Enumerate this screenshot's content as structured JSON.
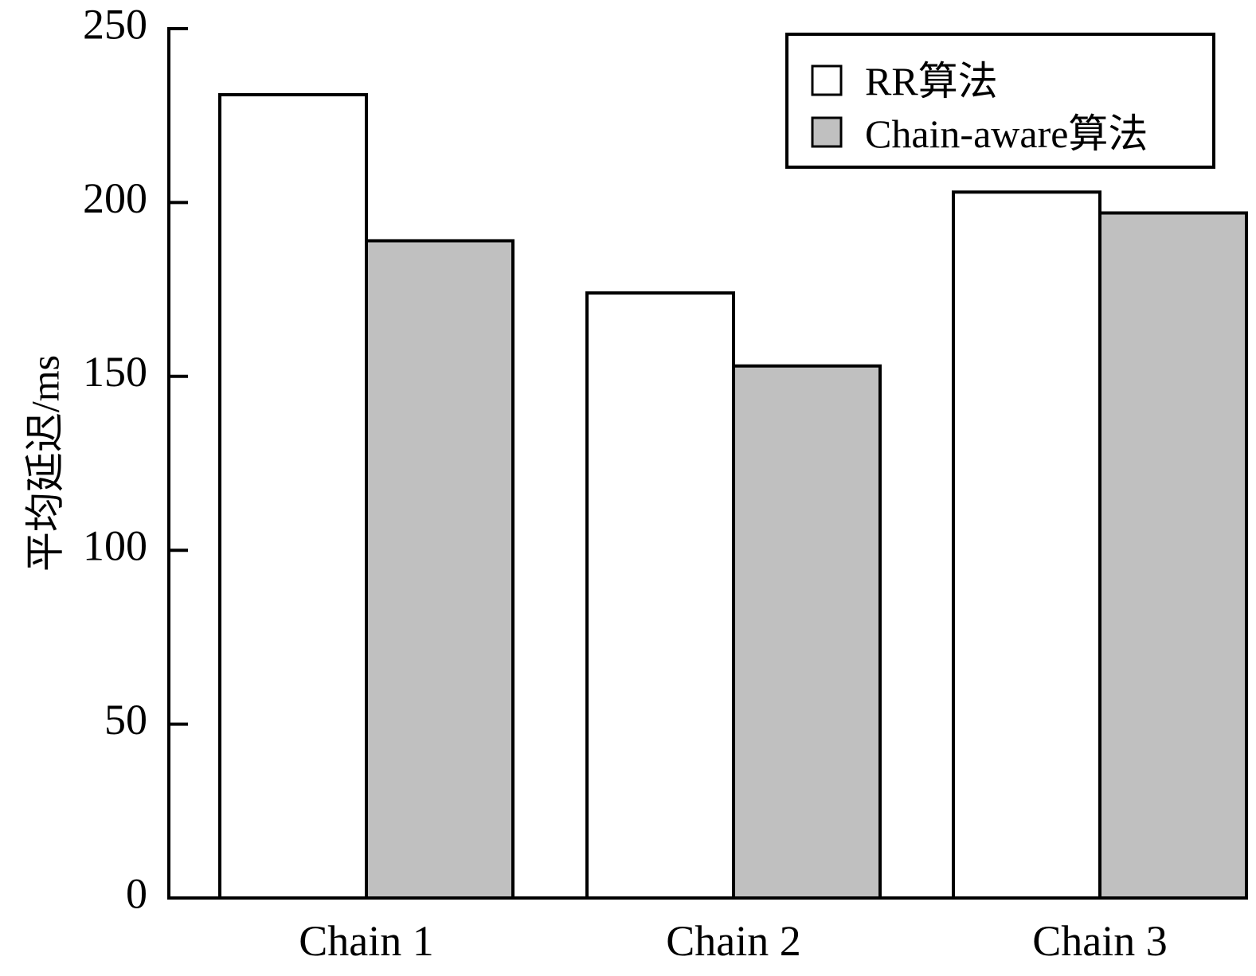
{
  "chart_data": {
    "type": "bar",
    "categories": [
      "Chain 1",
      "Chain 2",
      "Chain 3"
    ],
    "series": [
      {
        "name": "RR算法",
        "values": [
          231,
          174,
          203
        ],
        "color": "#ffffff"
      },
      {
        "name": "Chain-aware算法",
        "values": [
          189,
          153,
          197
        ],
        "color": "#c0c0c0"
      }
    ],
    "title": "",
    "xlabel": "",
    "ylabel": "平均延迟/ms",
    "ylim": [
      0,
      250
    ],
    "yticks": [
      0,
      50,
      100,
      150,
      200,
      250
    ],
    "grid": false,
    "legend_position": "top-right"
  }
}
